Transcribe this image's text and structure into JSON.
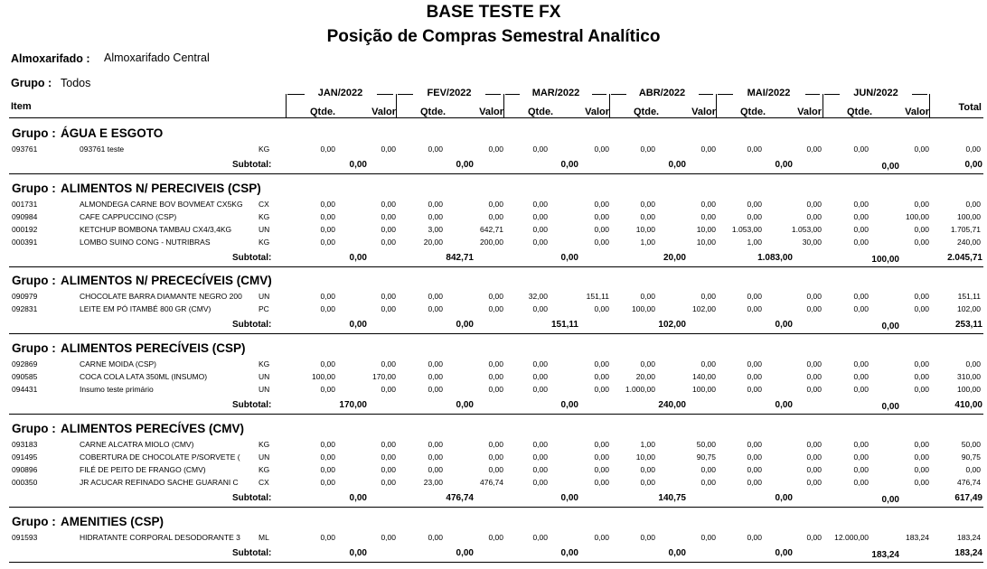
{
  "header": {
    "title": "BASE TESTE FX",
    "subtitle": "Posição de Compras Semestral Analítico",
    "almox_label": "Almoxarifado :",
    "almox_value": "Almoxarifado Central",
    "grupo_label": "Grupo :",
    "grupo_value": "Todos"
  },
  "columns": {
    "item": "Item",
    "months": [
      "JAN/2022",
      "FEV/2022",
      "MAR/2022",
      "ABR/2022",
      "MAI/2022",
      "JUN/2022"
    ],
    "qtde": "Qtde.",
    "valor": "Valor",
    "total": "Total"
  },
  "group_prefix": "Grupo :",
  "subtotal_label": "Subtotal:",
  "groups": [
    {
      "name": "ÁGUA E ESGOTO",
      "rows": [
        {
          "code": "093761",
          "desc": "093761 teste",
          "un": "KG",
          "vals": [
            "0,00",
            "0,00",
            "0,00",
            "0,00",
            "0,00",
            "0,00",
            "0,00",
            "0,00",
            "0,00",
            "0,00",
            "0,00",
            "0,00"
          ],
          "total": "0,00"
        }
      ],
      "subtotals": [
        "0,00",
        "0,00",
        "0,00",
        "0,00",
        "0,00",
        "0,00"
      ],
      "subtotal_total": "0,00"
    },
    {
      "name": "ALIMENTOS N/ PERECIVEIS  (CSP)",
      "rows": [
        {
          "code": "001731",
          "desc": "ALMONDEGA CARNE BOV BOVMEAT CX5KG",
          "un": "CX",
          "vals": [
            "0,00",
            "0,00",
            "0,00",
            "0,00",
            "0,00",
            "0,00",
            "0,00",
            "0,00",
            "0,00",
            "0,00",
            "0,00",
            "0,00"
          ],
          "total": "0,00"
        },
        {
          "code": "090984",
          "desc": "CAFE CAPPUCCINO (CSP)",
          "un": "KG",
          "vals": [
            "0,00",
            "0,00",
            "0,00",
            "0,00",
            "0,00",
            "0,00",
            "0,00",
            "0,00",
            "0,00",
            "0,00",
            "0,00",
            "100,00"
          ],
          "total": "100,00"
        },
        {
          "code": "000192",
          "desc": "KETCHUP BOMBONA TAMBAU CX4/3,4KG",
          "un": "UN",
          "vals": [
            "0,00",
            "0,00",
            "3,00",
            "642,71",
            "0,00",
            "0,00",
            "10,00",
            "10,00",
            "1.053,00",
            "1.053,00",
            "0,00",
            "0,00"
          ],
          "total": "1.705,71"
        },
        {
          "code": "000391",
          "desc": "LOMBO SUINO CONG - NUTRIBRAS",
          "un": "KG",
          "vals": [
            "0,00",
            "0,00",
            "20,00",
            "200,00",
            "0,00",
            "0,00",
            "1,00",
            "10,00",
            "1,00",
            "30,00",
            "0,00",
            "0,00"
          ],
          "total": "240,00"
        }
      ],
      "subtotals": [
        "0,00",
        "842,71",
        "0,00",
        "20,00",
        "1.083,00",
        "100,00"
      ],
      "subtotal_total": "2.045,71"
    },
    {
      "name": "ALIMENTOS N/ PRECECÍVEIS (CMV)",
      "rows": [
        {
          "code": "090979",
          "desc": "CHOCOLATE BARRA DIAMANTE NEGRO 200",
          "un": "UN",
          "vals": [
            "0,00",
            "0,00",
            "0,00",
            "0,00",
            "32,00",
            "151,11",
            "0,00",
            "0,00",
            "0,00",
            "0,00",
            "0,00",
            "0,00"
          ],
          "total": "151,11"
        },
        {
          "code": "092831",
          "desc": "LEITE EM PÓ ITAMBÉ 800 GR (CMV)",
          "un": "PC",
          "vals": [
            "0,00",
            "0,00",
            "0,00",
            "0,00",
            "0,00",
            "0,00",
            "100,00",
            "102,00",
            "0,00",
            "0,00",
            "0,00",
            "0,00"
          ],
          "total": "102,00"
        }
      ],
      "subtotals": [
        "0,00",
        "0,00",
        "151,11",
        "102,00",
        "0,00",
        "0,00"
      ],
      "subtotal_total": "253,11"
    },
    {
      "name": "ALIMENTOS PERECÍVEIS (CSP)",
      "rows": [
        {
          "code": "092869",
          "desc": "CARNE MOIDA (CSP)",
          "un": "KG",
          "vals": [
            "0,00",
            "0,00",
            "0,00",
            "0,00",
            "0,00",
            "0,00",
            "0,00",
            "0,00",
            "0,00",
            "0,00",
            "0,00",
            "0,00"
          ],
          "total": "0,00"
        },
        {
          "code": "090585",
          "desc": "COCA COLA LATA 350ML (INSUMO)",
          "un": "UN",
          "vals": [
            "100,00",
            "170,00",
            "0,00",
            "0,00",
            "0,00",
            "0,00",
            "20,00",
            "140,00",
            "0,00",
            "0,00",
            "0,00",
            "0,00"
          ],
          "total": "310,00"
        },
        {
          "code": "094431",
          "desc": "Insumo teste primário",
          "un": "UN",
          "vals": [
            "0,00",
            "0,00",
            "0,00",
            "0,00",
            "0,00",
            "0,00",
            "1.000,00",
            "100,00",
            "0,00",
            "0,00",
            "0,00",
            "0,00"
          ],
          "total": "100,00"
        }
      ],
      "subtotals": [
        "170,00",
        "0,00",
        "0,00",
        "240,00",
        "0,00",
        "0,00"
      ],
      "subtotal_total": "410,00"
    },
    {
      "name": "ALIMENTOS PERECÍVES (CMV)",
      "rows": [
        {
          "code": "093183",
          "desc": "CARNE ALCATRA MIOLO (CMV)",
          "un": "KG",
          "vals": [
            "0,00",
            "0,00",
            "0,00",
            "0,00",
            "0,00",
            "0,00",
            "1,00",
            "50,00",
            "0,00",
            "0,00",
            "0,00",
            "0,00"
          ],
          "total": "50,00"
        },
        {
          "code": "091495",
          "desc": "COBERTURA DE CHOCOLATE P/SORVETE (",
          "un": "UN",
          "vals": [
            "0,00",
            "0,00",
            "0,00",
            "0,00",
            "0,00",
            "0,00",
            "10,00",
            "90,75",
            "0,00",
            "0,00",
            "0,00",
            "0,00"
          ],
          "total": "90,75"
        },
        {
          "code": "090896",
          "desc": "FILÉ DE PEITO DE FRANGO (CMV)",
          "un": "KG",
          "vals": [
            "0,00",
            "0,00",
            "0,00",
            "0,00",
            "0,00",
            "0,00",
            "0,00",
            "0,00",
            "0,00",
            "0,00",
            "0,00",
            "0,00"
          ],
          "total": "0,00"
        },
        {
          "code": "000350",
          "desc": "JR ACUCAR REFINADO SACHE GUARANI C",
          "un": "CX",
          "vals": [
            "0,00",
            "0,00",
            "23,00",
            "476,74",
            "0,00",
            "0,00",
            "0,00",
            "0,00",
            "0,00",
            "0,00",
            "0,00",
            "0,00"
          ],
          "total": "476,74"
        }
      ],
      "subtotals": [
        "0,00",
        "476,74",
        "0,00",
        "140,75",
        "0,00",
        "0,00"
      ],
      "subtotal_total": "617,49"
    },
    {
      "name": "AMENITIES (CSP)",
      "rows": [
        {
          "code": "091593",
          "desc": "HIDRATANTE  CORPORAL DESODORANTE 3",
          "un": "ML",
          "vals": [
            "0,00",
            "0,00",
            "0,00",
            "0,00",
            "0,00",
            "0,00",
            "0,00",
            "0,00",
            "0,00",
            "0,00",
            "12.000,00",
            "183,24"
          ],
          "total": "183,24"
        }
      ],
      "subtotals": [
        "0,00",
        "0,00",
        "0,00",
        "0,00",
        "0,00",
        "183,24"
      ],
      "subtotal_total": "183,24"
    }
  ]
}
